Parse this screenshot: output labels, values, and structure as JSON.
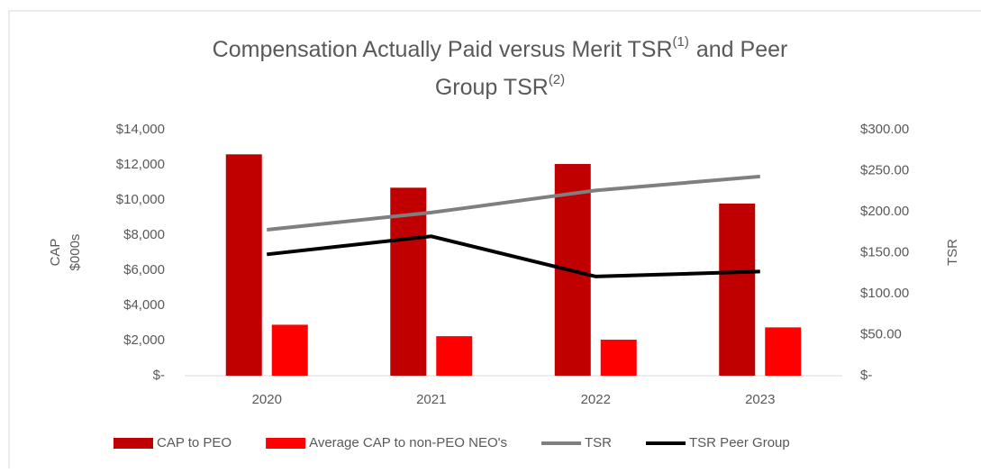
{
  "chart_data": {
    "type": "combo",
    "title_parts": [
      "Compensation Actually Paid versus Merit TSR",
      "(1)",
      "and Peer",
      "Group TSR",
      "(2)"
    ],
    "ylabel": [
      "CAP",
      "$000s"
    ],
    "y2label": "TSR",
    "categories": [
      "2020",
      "2021",
      "2022",
      "2023"
    ],
    "series": [
      {
        "name": "CAP to PEO",
        "type": "bar",
        "color": "#c00000",
        "values": [
          12600,
          10700,
          12050,
          9800
        ]
      },
      {
        "name": "Average CAP to  non-PEO NEO's",
        "type": "bar",
        "color": "#ff0000",
        "values": [
          2900,
          2250,
          2050,
          2750
        ]
      },
      {
        "name": "TSR",
        "type": "line",
        "axis": "y2",
        "color": "#7f7f7f",
        "values": [
          178,
          199,
          226,
          243
        ]
      },
      {
        "name": "TSR Peer Group",
        "type": "line",
        "axis": "y2",
        "color": "#000000",
        "values": [
          148,
          170,
          121,
          127
        ]
      }
    ],
    "ylim": [
      0,
      14000
    ],
    "yticks": [
      {
        "value": 0,
        "label": "$-"
      },
      {
        "value": 2000,
        "label": "$2,000"
      },
      {
        "value": 4000,
        "label": "$4,000"
      },
      {
        "value": 6000,
        "label": "$6,000"
      },
      {
        "value": 8000,
        "label": "$8,000"
      },
      {
        "value": 10000,
        "label": "$10,000"
      },
      {
        "value": 12000,
        "label": "$12,000"
      },
      {
        "value": 14000,
        "label": "$14,000"
      }
    ],
    "y2lim": [
      0,
      300
    ],
    "y2ticks": [
      {
        "value": 0,
        "label": "$-"
      },
      {
        "value": 50,
        "label": "$50.00"
      },
      {
        "value": 100,
        "label": "$100.00"
      },
      {
        "value": 150,
        "label": "$150.00"
      },
      {
        "value": 200,
        "label": "$200.00"
      },
      {
        "value": 250,
        "label": "$250.00"
      },
      {
        "value": 300,
        "label": "$300.00"
      }
    ],
    "grid": false,
    "legend": "bottom"
  }
}
